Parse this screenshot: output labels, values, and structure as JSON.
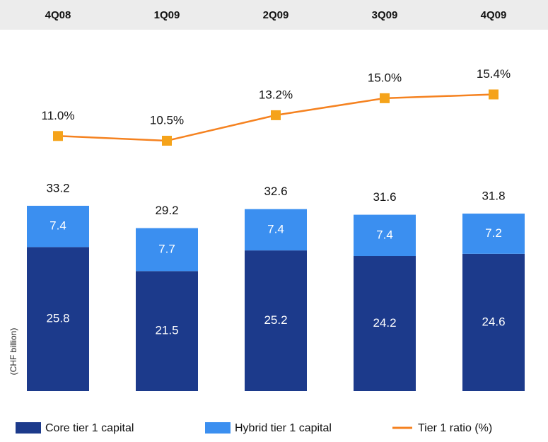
{
  "chart_data": {
    "type": "bar_line",
    "categories": [
      "4Q08",
      "1Q09",
      "2Q09",
      "3Q09",
      "4Q09"
    ],
    "y_label": "(CHF billion)",
    "ylim": [
      0,
      65
    ],
    "y2lim": [
      -16,
      22.4
    ],
    "series": [
      {
        "name": "Core tier 1 capital",
        "color": "#1c3a8b",
        "values": [
          25.8,
          21.5,
          25.2,
          24.2,
          24.6
        ]
      },
      {
        "name": "Hybrid tier 1 capital",
        "color": "#3b8ff0",
        "values": [
          7.4,
          7.7,
          7.4,
          7.4,
          7.2
        ]
      },
      {
        "name": "Tier 1 ratio (%)",
        "color": "#f58220",
        "marker_color": "#f5a31a",
        "axis": "y2",
        "values": [
          11.0,
          10.5,
          13.2,
          15.0,
          15.4
        ],
        "value_labels": [
          "11.0%",
          "10.5%",
          "13.2%",
          "15.0%",
          "15.4%"
        ]
      }
    ],
    "totals": [
      33.2,
      29.2,
      32.6,
      31.6,
      31.8
    ]
  }
}
